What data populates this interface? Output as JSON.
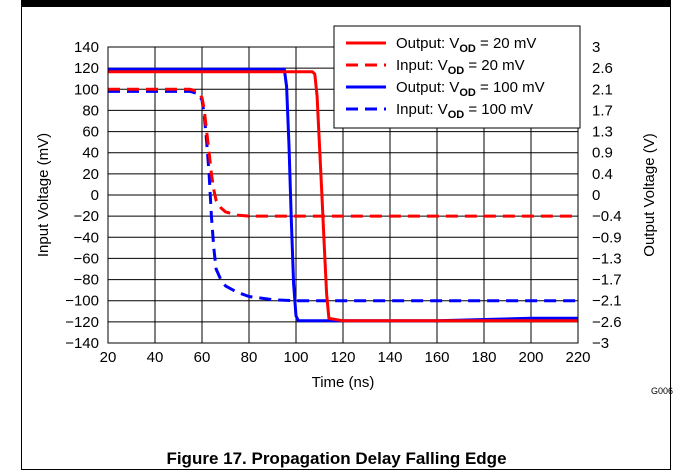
{
  "chart_data": {
    "type": "line",
    "caption": "Figure 17. Propagation Delay Falling Edge",
    "figure_id": "G006",
    "xlabel": "Time (ns)",
    "ylabel_left": "Input Voltage (mV)",
    "ylabel_right": "Output Voltage (V)",
    "xlim": [
      20,
      220
    ],
    "ylim_left": [
      -140,
      140
    ],
    "ylim_right": [
      -3,
      3
    ],
    "x_ticks": [
      "20",
      "40",
      "60",
      "80",
      "100",
      "120",
      "140",
      "160",
      "180",
      "200",
      "220"
    ],
    "y_ticks_left": [
      "140",
      "120",
      "100",
      "80",
      "60",
      "40",
      "20",
      "0",
      "−20",
      "−40",
      "−60",
      "−80",
      "−100",
      "−120",
      "−140"
    ],
    "y_ticks_right": [
      "3",
      "2.6",
      "2.1",
      "1.7",
      "1.3",
      "0.9",
      "0.4",
      "0",
      "−0.4",
      "−0.9",
      "−1.3",
      "−1.7",
      "−2.1",
      "−2.6",
      "−3"
    ],
    "grid": true,
    "legend_position": "top-right",
    "series": [
      {
        "name": "Output: VOD = 20 mV",
        "name_main": "Output: V",
        "name_sub": "OD",
        "name_tail": " = 20 mV",
        "axis": "right",
        "color": "#ff0000",
        "dash": "solid",
        "x": [
          20,
          100,
          107,
          108,
          109,
          110,
          111,
          112,
          113,
          114,
          120,
          160,
          200,
          220
        ],
        "y": [
          2.5,
          2.5,
          2.5,
          2.45,
          2.0,
          1.0,
          0.0,
          -1.0,
          -2.0,
          -2.5,
          -2.55,
          -2.55,
          -2.55,
          -2.55
        ]
      },
      {
        "name": "Input: VOD = 20 mV",
        "name_main": "Input: V",
        "name_sub": "OD",
        "name_tail": " = 20 mV",
        "axis": "left",
        "color": "#ff0000",
        "dash": "dashed",
        "x": [
          20,
          40,
          55,
          58,
          60,
          61,
          62,
          63,
          64,
          65,
          66,
          68,
          70,
          75,
          80,
          90,
          100,
          120,
          160,
          200,
          220
        ],
        "y": [
          100,
          100,
          100,
          98,
          92,
          80,
          60,
          40,
          20,
          5,
          -5,
          -12,
          -16,
          -19,
          -20,
          -20,
          -20,
          -20,
          -20,
          -20,
          -20
        ]
      },
      {
        "name": "Output: VOD = 100 mV",
        "name_main": "Output: V",
        "name_sub": "OD",
        "name_tail": " = 100 mV",
        "axis": "right",
        "color": "#0000ff",
        "dash": "solid",
        "x": [
          20,
          90,
          95,
          96,
          97,
          98,
          99,
          100,
          101,
          105,
          120,
          160,
          200,
          220
        ],
        "y": [
          2.55,
          2.55,
          2.55,
          2.2,
          1.0,
          -0.5,
          -1.8,
          -2.45,
          -2.55,
          -2.55,
          -2.55,
          -2.55,
          -2.5,
          -2.5
        ]
      },
      {
        "name": "Input: VOD = 100 mV",
        "name_main": "Input: V",
        "name_sub": "OD",
        "name_tail": " = 100 mV",
        "axis": "left",
        "color": "#0000ff",
        "dash": "dashed",
        "x": [
          20,
          40,
          55,
          58,
          60,
          61,
          62,
          63,
          64,
          65,
          66,
          68,
          70,
          75,
          80,
          90,
          100,
          120,
          160,
          200,
          220
        ],
        "y": [
          98,
          98,
          98,
          96,
          90,
          75,
          50,
          20,
          -20,
          -50,
          -70,
          -80,
          -86,
          -92,
          -96,
          -99,
          -100,
          -100,
          -100,
          -100,
          -100
        ]
      }
    ]
  }
}
